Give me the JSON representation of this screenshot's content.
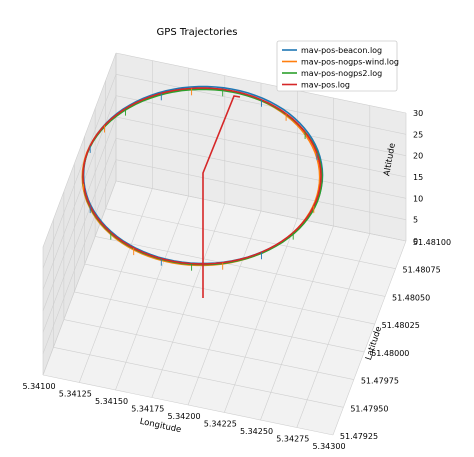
{
  "chart_data": {
    "type": "line3d",
    "title": "GPS Trajectories",
    "xlabel": "Longitude",
    "ylabel": "Latitude",
    "zlabel": "Altitude",
    "xlim": [
      5.341,
      5.343
    ],
    "ylim": [
      51.47925,
      51.481
    ],
    "zlim": [
      0,
      30
    ],
    "x_ticks": [
      "5.34100",
      "5.34125",
      "5.34150",
      "5.34175",
      "5.34200",
      "5.34225",
      "5.34250",
      "5.34275",
      "5.34300"
    ],
    "y_ticks": [
      "51.47925",
      "51.47950",
      "51.47975",
      "51.48000",
      "51.48025",
      "51.48050",
      "51.48075",
      "51.48100"
    ],
    "z_ticks": [
      "0",
      "5",
      "10",
      "15",
      "20",
      "25",
      "30"
    ],
    "grid": true,
    "legend_position": "top-right",
    "series": [
      {
        "name": "mav-pos-beacon.log",
        "color": "#1f77b4"
      },
      {
        "name": "mav-pos-nogps-wind.log",
        "color": "#ff7f0e"
      },
      {
        "name": "mav-pos-nogps2.log",
        "color": "#2ca02c"
      },
      {
        "name": "mav-pos.log",
        "color": "#d62728"
      }
    ]
  }
}
